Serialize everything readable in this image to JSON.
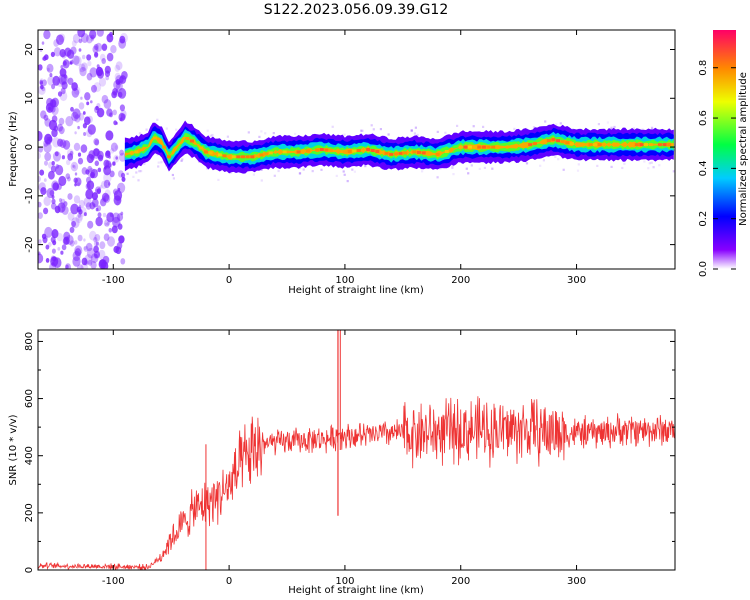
{
  "title": "S122.2023.056.09.39.G12",
  "colors": {
    "snr_line": "#ee3333",
    "spectrogram_scatter": "#7a22ff",
    "colormap": [
      "#ffffff",
      "#8800ff",
      "#0000ff",
      "#00ccff",
      "#00ff44",
      "#eeff00",
      "#ff8800",
      "#ff0066"
    ]
  },
  "chart_data": [
    {
      "type": "heatmap",
      "xlabel": "Height of straight line (km)",
      "ylabel": "Frequency (Hz)",
      "xlim": [
        -165,
        385
      ],
      "ylim": [
        -25,
        24
      ],
      "x_ticks": [
        -100,
        0,
        100,
        200,
        300
      ],
      "y_ticks": [
        -20,
        -10,
        0,
        10,
        20
      ],
      "grid": false,
      "colorbar": {
        "label": "Normalized spectral amplitude",
        "range": [
          0,
          0.95
        ],
        "ticks": [
          "0.0",
          "0.2",
          "0.4",
          "0.6",
          "0.8"
        ]
      },
      "noise_region_x": [
        -165,
        -90
      ],
      "ridge": {
        "x": [
          -90,
          -80,
          -70,
          -65,
          -58,
          -52,
          -45,
          -38,
          -30,
          -20,
          -10,
          0,
          20,
          40,
          60,
          80,
          100,
          120,
          140,
          160,
          180,
          200,
          220,
          240,
          260,
          280,
          300,
          320,
          340,
          360,
          385
        ],
        "y": [
          -1.5,
          -1,
          0,
          2,
          1,
          -2,
          0,
          2,
          1,
          -1,
          -1.5,
          -2,
          -2,
          -1,
          -1,
          -0.5,
          -1,
          -0.5,
          -1.5,
          -1,
          -1.5,
          0,
          0,
          0,
          0.5,
          1.5,
          0.5,
          0.5,
          0.5,
          0.5,
          0.5
        ],
        "peak_amplitude": 0.9
      }
    },
    {
      "type": "line",
      "xlabel": "Height of straight line (km)",
      "ylabel": "SNR (10 * v/v)",
      "xlim": [
        -165,
        385
      ],
      "ylim": [
        0,
        840
      ],
      "x_ticks": [
        -100,
        0,
        100,
        200,
        300
      ],
      "y_ticks": [
        0,
        200,
        400,
        600,
        800
      ],
      "grid": false,
      "series": [
        {
          "x": [
            -165,
            -100,
            -70,
            -60,
            -50,
            -40,
            -30,
            -20,
            -10,
            0,
            10,
            20,
            30,
            50,
            70,
            90,
            96,
            100,
            120,
            140,
            160,
            180,
            200,
            220,
            240,
            260,
            280,
            300,
            320,
            340,
            360,
            385
          ],
          "y": [
            15,
            12,
            10,
            40,
            110,
            160,
            210,
            230,
            260,
            290,
            360,
            410,
            440,
            450,
            455,
            460,
            480,
            470,
            470,
            480,
            480,
            480,
            490,
            490,
            490,
            490,
            480,
            480,
            480,
            490,
            490,
            490
          ]
        }
      ],
      "spike": {
        "x": 94,
        "y_max": 840,
        "y_min": 190
      },
      "dropouts": [
        {
          "x": -20,
          "y_max": 440,
          "y_min": 0
        }
      ]
    }
  ]
}
